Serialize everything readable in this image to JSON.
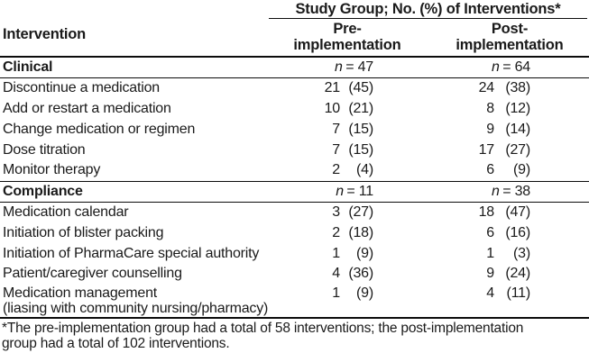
{
  "table": {
    "col1_header": "Intervention",
    "span_header": "Study Group; No. (%) of Interventions*",
    "pre_header": "Pre-\nimplementation",
    "post_header": "Post-\nimplementation",
    "sections": [
      {
        "name": "Clinical",
        "n_symbol": "n",
        "pre_n": "= 47",
        "post_n": "= 64",
        "rows": [
          {
            "label": "Discontinue a medication",
            "pre": "21",
            "pre_pct": "(45)",
            "post": "24",
            "post_pct": "(38)"
          },
          {
            "label": "Add or restart a medication",
            "pre": "10",
            "pre_pct": "(21)",
            "post": "8",
            "post_pct": "(12)"
          },
          {
            "label": "Change medication or regimen",
            "pre": "7",
            "pre_pct": "(15)",
            "post": "9",
            "post_pct": "(14)"
          },
          {
            "label": "Dose titration",
            "pre": "7",
            "pre_pct": "(15)",
            "post": "17",
            "post_pct": "(27)"
          },
          {
            "label": "Monitor therapy",
            "pre": "2",
            "pre_pct": "(4)",
            "post": "6",
            "post_pct": "(9)"
          }
        ]
      },
      {
        "name": "Compliance",
        "n_symbol": "n",
        "pre_n": "= 11",
        "post_n": "= 38",
        "rows": [
          {
            "label": "Medication calendar",
            "pre": "3",
            "pre_pct": "(27)",
            "post": "18",
            "post_pct": "(47)"
          },
          {
            "label": "Initiation of blister packing",
            "pre": "2",
            "pre_pct": "(18)",
            "post": "6",
            "post_pct": "(16)"
          },
          {
            "label": "Initiation of PharmaCare special authority",
            "pre": "1",
            "pre_pct": "(9)",
            "post": "1",
            "post_pct": "(3)"
          },
          {
            "label": "Patient/caregiver counselling",
            "pre": "4",
            "pre_pct": "(36)",
            "post": "9",
            "post_pct": "(24)"
          },
          {
            "label": "Medication management",
            "label2": "(liasing with community nursing/pharmacy)",
            "pre": "1",
            "pre_pct": "(9)",
            "post": "4",
            "post_pct": "(11)"
          }
        ]
      }
    ],
    "footnote": "*The pre-implementation group had a total of 58 interventions; the post-implementation\ngroup had a total of 102 interventions."
  },
  "colors": {
    "text": "#1a1a1a",
    "rule": "#0c0c0c",
    "background": "#ffffff"
  }
}
